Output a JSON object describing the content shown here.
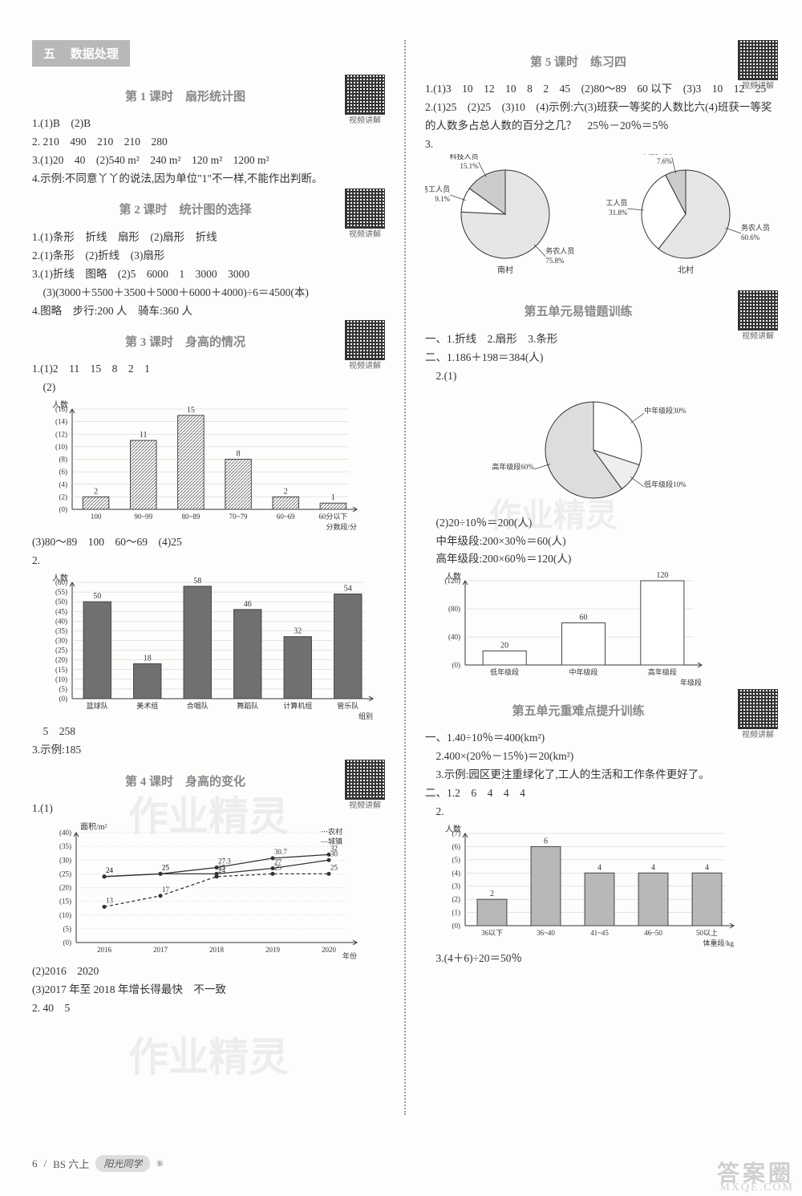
{
  "chapter": {
    "num": "五",
    "title": "数据处理"
  },
  "qr_caption": "视频讲解",
  "left": {
    "lesson1": {
      "title": "第 1 课时　扇形统计图",
      "a1": "1.(1)B　(2)B",
      "a2": "2. 210　490　210　210　280",
      "a3": "3.(1)20　40　(2)540 m²　240 m²　120 m²　1200 m²",
      "a4": "4.示例:不同意丫丫的说法,因为单位\"1\"不一样,不能作出判断。"
    },
    "lesson2": {
      "title": "第 2 课时　统计图的选择",
      "a1": "1.(1)条形　折线　扇形　(2)扇形　折线",
      "a2": "2.(1)条形　(2)折线　(3)扇形",
      "a3": "3.(1)折线　图略　(2)5　6000　1　3000　3000",
      "a3b": "　(3)(3000＋5500＋3500＋5000＋6000＋4000)÷6＝4500(本)",
      "a4": "4.图略　步行:200 人　骑车:360 人"
    },
    "lesson3": {
      "title": "第 3 课时　身高的情况",
      "a1": "1.(1)2　11　15　8　2　1",
      "a1_2": "　(2)",
      "a1_3": "(3)80～89　100　60～69　(4)25",
      "a2": "2.",
      "a2_foot": "　5　258",
      "a3": "3.示例:185",
      "chart1": {
        "ylabel": "人数",
        "categories": [
          "100",
          "90~99",
          "80~89",
          "70~79",
          "60~69",
          "60分以下"
        ],
        "xright": "分数段/分",
        "values": [
          2,
          11,
          15,
          8,
          2,
          1
        ],
        "ymax": 16,
        "ystep": 2,
        "bar_color": "#c8c8c8"
      },
      "chart2": {
        "ylabel": "人数",
        "categories": [
          "篮球队",
          "美术组",
          "合唱队",
          "舞蹈队",
          "计算机组",
          "管乐队"
        ],
        "xright": "组别",
        "values": [
          50,
          18,
          58,
          46,
          32,
          54
        ],
        "ymax": 60,
        "ystep": 5,
        "bar_color": "#707070"
      }
    },
    "lesson4": {
      "title": "第 4 课时　身高的变化",
      "a1": "1.(1)",
      "a1_2": "(2)2016　2020",
      "a1_3": "(3)2017 年至 2018 年增长得最快　不一致",
      "a2": "2. 40　5",
      "chart": {
        "ylabel": "面积/m²",
        "legend": [
          "农村",
          "城镇"
        ],
        "x": [
          "2016",
          "2017",
          "2018",
          "2019",
          "2020"
        ],
        "xright": "年份",
        "rural": [
          13,
          17,
          24,
          25,
          25
        ],
        "urban": [
          24,
          25,
          27.3,
          30.7,
          32
        ],
        "urban2": [
          24,
          25,
          25,
          27,
          30
        ],
        "ymax": 40,
        "ystep": 5
      }
    }
  },
  "right": {
    "lesson5": {
      "title": "第 5 课时　练习四",
      "a1": "1.(1)3　10　12　10　8　2　45　(2)80～89　60 以下　(3)3　10　12　25",
      "a2": "2.(1)25　(2)25　(3)10　(4)示例:六(3)班获一等奖的人数比六(4)班获一等奖的人数多占总人数的百分之几？　25％－20％＝5％",
      "a3": "3.",
      "pie1": {
        "title": "南村",
        "slices": [
          {
            "label": "务农人员",
            "pct": 75.8,
            "color": "#e5e5e5"
          },
          {
            "label": "进城务工人员",
            "pct": 9.1,
            "color": "#ffffff"
          },
          {
            "label": "科技人员",
            "pct": 15.1,
            "color": "#cccccc"
          }
        ]
      },
      "pie2": {
        "title": "北村",
        "slices": [
          {
            "label": "务农人员",
            "pct": 60.6,
            "color": "#e5e5e5"
          },
          {
            "label": "进城务工人员",
            "pct": 31.8,
            "color": "#ffffff"
          },
          {
            "label": "科技人员",
            "pct": 7.6,
            "color": "#cccccc"
          }
        ]
      }
    },
    "unit_err": {
      "title": "第五单元易错题训练",
      "l1": "一、1.折线　2.扇形　3.条形",
      "l2": "二、1.186＋198＝384(人)",
      "l2b": "　2.(1)",
      "pie3": {
        "slices": [
          {
            "label": "中年级段30%",
            "pct": 30,
            "color": "#ffffff"
          },
          {
            "label": "低年级段10%",
            "pct": 10,
            "color": "#eeeeee"
          },
          {
            "label": "高年级段60%",
            "pct": 60,
            "color": "#dddddd"
          }
        ]
      },
      "calc1": "　(2)20÷10％＝200(人)",
      "calc2": "　中年级段:200×30％＝60(人)",
      "calc3": "　高年级段:200×60％＝120(人)",
      "chart": {
        "ylabel": "人数",
        "categories": [
          "低年级段",
          "中年级段",
          "高年级段"
        ],
        "xright": "年级段",
        "values": [
          20,
          60,
          120
        ],
        "ymax": 120,
        "ystep": 40,
        "bar_color": "#ffffff"
      }
    },
    "unit_hard": {
      "title": "第五单元重难点提升训练",
      "l1": "一、1.40÷10％＝400(km²)",
      "l2": "　2.400×(20％－15％)＝20(km²)",
      "l3": "　3.示例:园区更注重绿化了,工人的生活和工作条件更好了。",
      "l4": "二、1.2　6　4　4　4",
      "l5": "　2.",
      "chart": {
        "ylabel": "人数",
        "categories": [
          "36以下",
          "36~40",
          "41~45",
          "46~50",
          "50以上"
        ],
        "xright": "体重段/kg",
        "values": [
          2,
          6,
          4,
          4,
          4
        ],
        "ymax": 7,
        "ystep": 1,
        "bar_color": "#b8b8b8"
      },
      "l6": "　3.(4＋6)÷20＝50％"
    }
  },
  "footer": {
    "page": "6",
    "edition": "BS 六上",
    "brand": "阳光同学"
  },
  "watermarks": {
    "wm1": "作业精灵",
    "corner1": "答案圈",
    "corner2": "MXQE.COM"
  }
}
